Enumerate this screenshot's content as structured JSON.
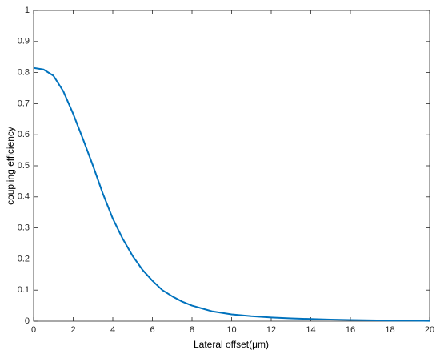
{
  "chart_data": {
    "type": "line",
    "x_label": "Lateral offset(μm)",
    "y_label": "coupling efficiency",
    "x": [
      0,
      0.5,
      1,
      1.5,
      2,
      2.5,
      3,
      3.5,
      4,
      4.5,
      5,
      5.5,
      6,
      6.5,
      7,
      7.5,
      8,
      9,
      10,
      11,
      12,
      13,
      14,
      15,
      16,
      17,
      18,
      19,
      20
    ],
    "series": [
      {
        "color": "#0072bd",
        "values": [
          0.815,
          0.81,
          0.79,
          0.74,
          0.667,
          0.585,
          0.5,
          0.41,
          0.33,
          0.265,
          0.21,
          0.165,
          0.13,
          0.1,
          0.08,
          0.063,
          0.05,
          0.032,
          0.022,
          0.016,
          0.012,
          0.009,
          0.007,
          0.005,
          0.004,
          0.003,
          0.002,
          0.002,
          0.001
        ]
      }
    ],
    "xlim": [
      0,
      20
    ],
    "xticks": [
      0,
      2,
      4,
      6,
      8,
      10,
      12,
      14,
      16,
      18,
      20
    ],
    "ylim": [
      0,
      1
    ],
    "yticks": [
      0,
      0.1,
      0.2,
      0.3,
      0.4,
      0.5,
      0.6,
      0.7,
      0.8,
      0.9,
      1
    ],
    "grid": false
  }
}
